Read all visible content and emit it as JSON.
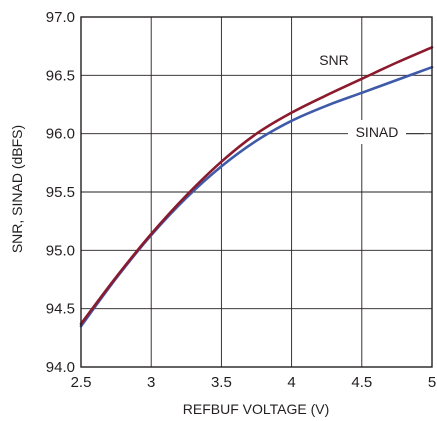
{
  "chart_data": {
    "type": "line",
    "title": "",
    "xlabel": "REFBUF VOLTAGE (V)",
    "ylabel": "SNR, SINAD (dBFS)",
    "xlim": [
      2.5,
      5
    ],
    "ylim": [
      94.0,
      97.0
    ],
    "x_ticks": [
      2.5,
      3,
      3.5,
      4,
      4.5,
      5
    ],
    "x_tick_labels": [
      "2.5",
      "3",
      "3.5",
      "4",
      "4.5",
      "5"
    ],
    "y_ticks": [
      94.0,
      94.5,
      95.0,
      95.5,
      96.0,
      96.5,
      97.0
    ],
    "y_tick_labels": [
      "94.0",
      "94.5",
      "95.0",
      "95.5",
      "96.0",
      "96.5",
      "97.0"
    ],
    "grid": true,
    "legend": "none",
    "series": [
      {
        "name": "SNR",
        "color": "#8b1a2e",
        "x": [
          2.5,
          2.75,
          3.0,
          3.25,
          3.5,
          3.75,
          4.0,
          4.25,
          4.5,
          4.75,
          5.0
        ],
        "y": [
          94.37,
          94.77,
          95.14,
          95.47,
          95.76,
          96.0,
          96.18,
          96.33,
          96.47,
          96.61,
          96.74
        ]
      },
      {
        "name": "SINAD",
        "color": "#3e5aa8",
        "x": [
          2.5,
          2.75,
          3.0,
          3.25,
          3.5,
          3.75,
          4.0,
          4.25,
          4.5,
          4.75,
          5.0
        ],
        "y": [
          94.35,
          94.76,
          95.13,
          95.45,
          95.72,
          95.94,
          96.11,
          96.24,
          96.35,
          96.46,
          96.57
        ]
      }
    ],
    "annotations": [
      {
        "text": "SNR",
        "series": "SNR"
      },
      {
        "text": "SINAD",
        "series": "SINAD"
      }
    ]
  }
}
